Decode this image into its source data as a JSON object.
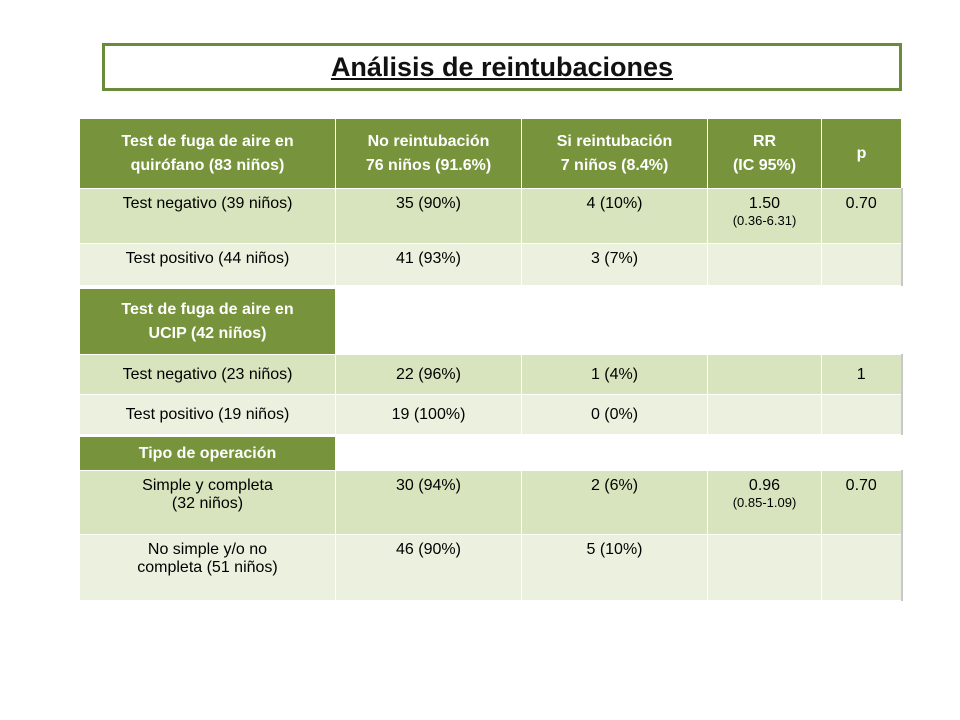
{
  "title": "Análisis de reintubaciones",
  "section1": {
    "headers": [
      [
        "Test de fuga de aire en",
        "quirófano (83 niños)"
      ],
      [
        "No reintubación",
        "76 niños (91.6%)"
      ],
      [
        "Si reintubación",
        "7 niños (8.4%)"
      ],
      [
        "RR",
        "(IC 95%)"
      ],
      [
        "p",
        ""
      ]
    ],
    "rows": [
      {
        "label": "Test negativo (39 niños)",
        "no": "35 (90%)",
        "si": "4 (10%)",
        "rr": "1.50",
        "ci": "(0.36-6.31)",
        "p": "0.70"
      },
      {
        "label": "Test positivo (44 niños)",
        "no": "41 (93%)",
        "si": "3 (7%)",
        "rr": "",
        "ci": "",
        "p": ""
      }
    ]
  },
  "section2": {
    "header": [
      "Test de fuga de aire en",
      "UCIP (42 niños)"
    ],
    "rows": [
      {
        "label": "Test negativo (23 niños)",
        "no": "22 (96%)",
        "si": "1 (4%)",
        "rr": "",
        "p": "1"
      },
      {
        "label": "Test positivo (19 niños)",
        "no": "19 (100%)",
        "si": "0 (0%)",
        "rr": "",
        "p": ""
      }
    ]
  },
  "section3": {
    "header": "Tipo de operación",
    "rows": [
      {
        "label1": "Simple y completa",
        "label2": "(32 niños)",
        "no": "30 (94%)",
        "si": "2 (6%)",
        "rr": "0.96",
        "ci": "(0.85-1.09)",
        "p": "0.70"
      },
      {
        "label1": "No simple y/o no",
        "label2": "completa (51 niños)",
        "no": "46 (90%)",
        "si": "5 (10%)",
        "rr": "",
        "ci": "",
        "p": ""
      }
    ]
  },
  "colors": {
    "header_green": "#77933c",
    "row_dark": "#d7e4bd",
    "row_light": "#ebf1de",
    "title_border": "#6a8b3a"
  }
}
